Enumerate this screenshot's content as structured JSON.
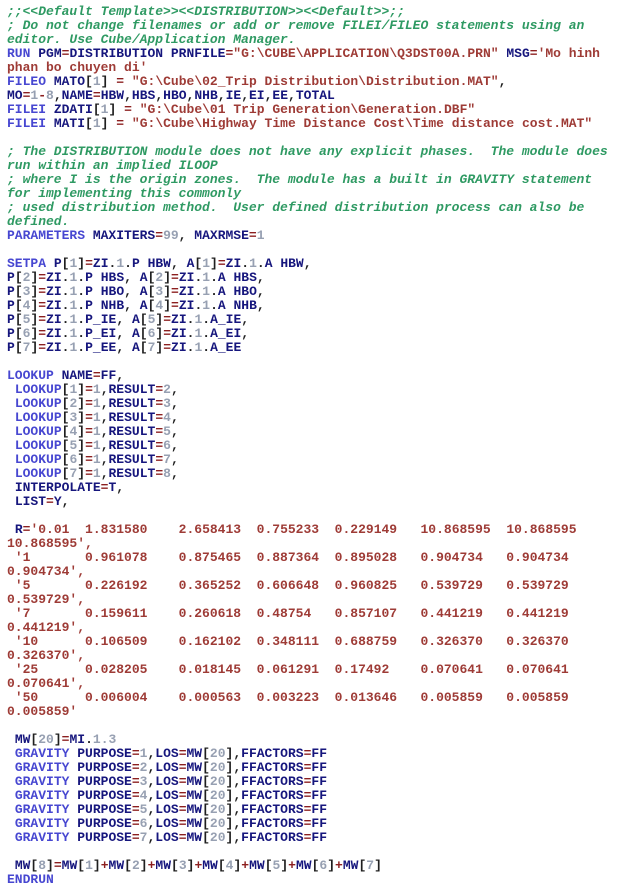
{
  "colors": {
    "background": "#ffffff",
    "comment": "#2f9a63",
    "keyword": "#4747d1",
    "ident": "#16167d",
    "number": "#97a0b2",
    "operator": "#8c1f1f",
    "string": "#9e3b36",
    "plain": "#1f1f1f"
  },
  "syntax": {
    "keywords": [
      "RUN",
      "FILEO",
      "FILEI",
      "PARAMETERS",
      "SETPA",
      "LOOKUP",
      "GRAVITY",
      "ENDRUN"
    ]
  },
  "editor": {
    "lines": [
      {
        "t": "c",
        "s": ";;<<Default Template>><<DISTRIBUTION>><<Default>>;;"
      },
      {
        "t": "c",
        "s": "; Do not change filenames or add or remove FILEI/FILEO statements using an"
      },
      {
        "t": "c",
        "s": "editor. Use Cube/Application Manager."
      },
      {
        "t": "k",
        "s": "RUN PGM=DISTRIBUTION PRNFILE=\"G:\\CUBE\\APPLICATION\\Q3DST00A.PRN\" MSG='Mo hinh"
      },
      {
        "t": "s",
        "s": "phan bo chuyen di'"
      },
      {
        "t": "k",
        "s": "FILEO MATO[1] = \"G:\\Cube\\02_Trip Distribution\\Distribution.MAT\","
      },
      {
        "t": "k",
        "s": "MO=1-8,NAME=HBW,HBS,HBO,NHB,IE,EI,EE,TOTAL"
      },
      {
        "t": "k",
        "s": "FILEI ZDATI[1] = \"G:\\Cube\\01 Trip Generation\\Generation.DBF\""
      },
      {
        "t": "k",
        "s": "FILEI MATI[1] = \"G:\\Cube\\Highway Time Distance Cost\\Time distance cost.MAT\""
      },
      {
        "t": "b",
        "s": ""
      },
      {
        "t": "c",
        "s": "; The DISTRIBUTION module does not have any explicit phases.  The module does"
      },
      {
        "t": "c",
        "s": "run within an implied ILOOP"
      },
      {
        "t": "c",
        "s": "; where I is the origin zones.  The module has a built in GRAVITY statement"
      },
      {
        "t": "c",
        "s": "for implementing this commonly"
      },
      {
        "t": "c",
        "s": "; used distribution method.  User defined distribution process can also be"
      },
      {
        "t": "c",
        "s": "defined."
      },
      {
        "t": "k",
        "s": "PARAMETERS MAXITERS=99, MAXRMSE=1"
      },
      {
        "t": "b",
        "s": ""
      },
      {
        "t": "k",
        "s": "SETPA P[1]=ZI.1.P HBW, A[1]=ZI.1.A HBW,"
      },
      {
        "t": "k",
        "s": "P[2]=ZI.1.P HBS, A[2]=ZI.1.A HBS,"
      },
      {
        "t": "k",
        "s": "P[3]=ZI.1.P HBO, A[3]=ZI.1.A HBO,"
      },
      {
        "t": "k",
        "s": "P[4]=ZI.1.P NHB, A[4]=ZI.1.A NHB,"
      },
      {
        "t": "k",
        "s": "P[5]=ZI.1.P_IE, A[5]=ZI.1.A_IE,"
      },
      {
        "t": "k",
        "s": "P[6]=ZI.1.P_EI, A[6]=ZI.1.A_EI,"
      },
      {
        "t": "k",
        "s": "P[7]=ZI.1.P_EE, A[7]=ZI.1.A_EE"
      },
      {
        "t": "b",
        "s": ""
      },
      {
        "t": "k",
        "s": "LOOKUP NAME=FF,"
      },
      {
        "t": "k",
        "s": " LOOKUP[1]=1,RESULT=2,"
      },
      {
        "t": "k",
        "s": " LOOKUP[2]=1,RESULT=3,"
      },
      {
        "t": "k",
        "s": " LOOKUP[3]=1,RESULT=4,"
      },
      {
        "t": "k",
        "s": " LOOKUP[4]=1,RESULT=5,"
      },
      {
        "t": "k",
        "s": " LOOKUP[5]=1,RESULT=6,"
      },
      {
        "t": "k",
        "s": " LOOKUP[6]=1,RESULT=7,"
      },
      {
        "t": "k",
        "s": " LOOKUP[7]=1,RESULT=8,"
      },
      {
        "t": "k",
        "s": " INTERPOLATE=T,"
      },
      {
        "t": "k",
        "s": " LIST=Y,"
      },
      {
        "t": "b",
        "s": ""
      },
      {
        "t": "k",
        "s": " R='0.01  1.831580    2.658413  0.755233  0.229149   10.868595  10.868595"
      },
      {
        "t": "s",
        "s": "10.868595',"
      },
      {
        "t": "k",
        "s": " '1       0.961078    0.875465  0.887364  0.895028   0.904734   0.904734"
      },
      {
        "t": "s",
        "s": "0.904734',"
      },
      {
        "t": "k",
        "s": " '5       0.226192    0.365252  0.606648  0.960825   0.539729   0.539729"
      },
      {
        "t": "s",
        "s": "0.539729',"
      },
      {
        "t": "k",
        "s": " '7       0.159611    0.260618  0.48754   0.857107   0.441219   0.441219"
      },
      {
        "t": "s",
        "s": "0.441219',"
      },
      {
        "t": "k",
        "s": " '10      0.106509    0.162102  0.348111  0.688759   0.326370   0.326370"
      },
      {
        "t": "s",
        "s": "0.326370',"
      },
      {
        "t": "k",
        "s": " '25      0.028205    0.018145  0.061291  0.17492    0.070641   0.070641"
      },
      {
        "t": "s",
        "s": "0.070641',"
      },
      {
        "t": "k",
        "s": " '50      0.006004    0.000563  0.003223  0.013646   0.005859   0.005859"
      },
      {
        "t": "s",
        "s": "0.005859'"
      },
      {
        "t": "b",
        "s": ""
      },
      {
        "t": "k",
        "s": " MW[20]=MI.1.3"
      },
      {
        "t": "k",
        "s": " GRAVITY PURPOSE=1,LOS=MW[20],FFACTORS=FF"
      },
      {
        "t": "k",
        "s": " GRAVITY PURPOSE=2,LOS=MW[20],FFACTORS=FF"
      },
      {
        "t": "k",
        "s": " GRAVITY PURPOSE=3,LOS=MW[20],FFACTORS=FF"
      },
      {
        "t": "k",
        "s": " GRAVITY PURPOSE=4,LOS=MW[20],FFACTORS=FF"
      },
      {
        "t": "k",
        "s": " GRAVITY PURPOSE=5,LOS=MW[20],FFACTORS=FF"
      },
      {
        "t": "k",
        "s": " GRAVITY PURPOSE=6,LOS=MW[20],FFACTORS=FF"
      },
      {
        "t": "k",
        "s": " GRAVITY PURPOSE=7,LOS=MW[20],FFACTORS=FF"
      },
      {
        "t": "b",
        "s": ""
      },
      {
        "t": "k",
        "s": " MW[8]=MW[1]+MW[2]+MW[3]+MW[4]+MW[5]+MW[6]+MW[7]"
      },
      {
        "t": "k",
        "s": "ENDRUN"
      }
    ]
  }
}
